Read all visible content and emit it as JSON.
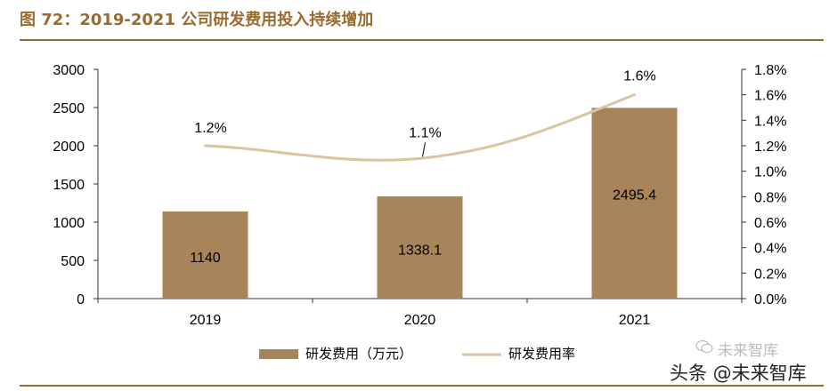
{
  "figure": {
    "title": "图 72：2019-2021 公司研发费用投入持续增加"
  },
  "chart_data": {
    "type": "bar",
    "title": "图 72：2019-2021 公司研发费用投入持续增加",
    "categories": [
      "2019",
      "2020",
      "2021"
    ],
    "series": [
      {
        "name": "研发费用（万元）",
        "type": "bar",
        "axis": "left",
        "values": [
          1140,
          1338.1,
          2495.4
        ],
        "labels": [
          "1140",
          "1338.1",
          "2495.4"
        ],
        "color": "#a8845a"
      },
      {
        "name": "研发费用率",
        "type": "line",
        "axis": "right",
        "values": [
          1.2,
          1.1,
          1.6
        ],
        "labels": [
          "1.2%",
          "1.1%",
          "1.6%"
        ],
        "color": "#d9c5a0"
      }
    ],
    "y_left": {
      "ylim": [
        0,
        3000
      ],
      "ticks": [
        0,
        500,
        1000,
        1500,
        2000,
        2500,
        3000
      ],
      "tick_labels": [
        "0",
        "500",
        "1000",
        "1500",
        "2000",
        "2500",
        "3000"
      ]
    },
    "y_right": {
      "ylim": [
        0,
        1.8
      ],
      "ticks": [
        0,
        0.2,
        0.4,
        0.6,
        0.8,
        1.0,
        1.2,
        1.4,
        1.6,
        1.8
      ],
      "tick_labels": [
        "0.0%",
        "0.2%",
        "0.4%",
        "0.6%",
        "0.8%",
        "1.0%",
        "1.2%",
        "1.4%",
        "1.6%",
        "1.8%"
      ]
    },
    "legend_position": "bottom-center",
    "grid": false
  },
  "watermark": {
    "main": "头条 @未来智库",
    "faint": "未来智库"
  }
}
